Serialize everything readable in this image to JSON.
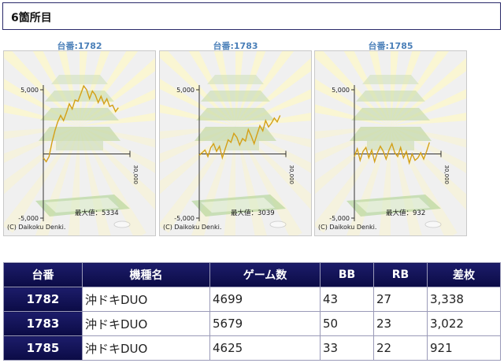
{
  "header": {
    "title": "6箇所目"
  },
  "graphs": [
    {
      "title": "台番:1782",
      "max_label": "最大値：5334",
      "copyright": "(C) Daikoku Denki.",
      "y_top_label": "5,000",
      "y_bottom_label": "-5,000",
      "x_end_label": "30,000",
      "chart_data": {
        "type": "line",
        "xlabel": "",
        "ylabel": "",
        "xlim": [
          0,
          30000
        ],
        "ylim": [
          -5000,
          5000
        ],
        "x": [
          0,
          1000,
          2000,
          3000,
          4000,
          5000,
          6000,
          7000,
          8000,
          9000,
          10000,
          11000,
          12000,
          13000,
          14000,
          15000,
          16000,
          17000,
          18000,
          19000,
          20000,
          21000,
          22000,
          23000,
          24000,
          25000,
          26000
        ],
        "y": [
          -300,
          -600,
          -200,
          900,
          1800,
          2500,
          3000,
          2600,
          3200,
          3900,
          3500,
          4200,
          4100,
          4700,
          5300,
          5000,
          4300,
          4900,
          4600,
          4000,
          4500,
          3900,
          4300,
          3700,
          3800,
          3300,
          3600
        ]
      }
    },
    {
      "title": "台番:1783",
      "max_label": "最大値：3039",
      "copyright": "(C) Daikoku Denki.",
      "y_top_label": "5,000",
      "y_bottom_label": "-5,000",
      "x_end_label": "30,000",
      "chart_data": {
        "type": "line",
        "xlabel": "",
        "ylabel": "",
        "xlim": [
          0,
          30000
        ],
        "ylim": [
          -5000,
          5000
        ],
        "x": [
          0,
          1000,
          2000,
          3000,
          4000,
          5000,
          6000,
          7000,
          8000,
          9000,
          10000,
          11000,
          12000,
          13000,
          14000,
          15000,
          16000,
          17000,
          18000,
          19000,
          20000,
          21000,
          22000,
          23000,
          24000,
          25000,
          26000,
          27000,
          28000
        ],
        "y": [
          -100,
          100,
          300,
          -200,
          500,
          800,
          200,
          600,
          -300,
          400,
          1100,
          900,
          1600,
          1300,
          700,
          1200,
          1000,
          1900,
          1400,
          800,
          1500,
          2200,
          1800,
          2600,
          2100,
          2400,
          2800,
          2500,
          3000
        ]
      }
    },
    {
      "title": "台番:1785",
      "max_label": "最大値：932",
      "copyright": "(C) Daikoku Denki.",
      "y_top_label": "5,000",
      "y_bottom_label": "-5,000",
      "x_end_label": "30,000",
      "chart_data": {
        "type": "line",
        "xlabel": "",
        "ylabel": "",
        "xlim": [
          0,
          30000
        ],
        "ylim": [
          -5000,
          5000
        ],
        "x": [
          0,
          1000,
          2000,
          3000,
          4000,
          5000,
          6000,
          7000,
          8000,
          9000,
          10000,
          11000,
          12000,
          13000,
          14000,
          15000,
          16000,
          17000,
          18000,
          19000,
          20000,
          21000,
          22000,
          23000,
          24000,
          25000,
          26000
        ],
        "y": [
          -200,
          400,
          -500,
          200,
          500,
          -300,
          300,
          -600,
          100,
          600,
          200,
          -400,
          300,
          800,
          100,
          -200,
          500,
          -300,
          200,
          -700,
          0,
          -500,
          -300,
          100,
          -400,
          200,
          900
        ]
      }
    }
  ],
  "table": {
    "headers": [
      "台番",
      "機種名",
      "ゲーム数",
      "BB",
      "RB",
      "差枚"
    ],
    "rows": [
      {
        "id": "1782",
        "model": "沖ドキDUO",
        "games": "4699",
        "bb": "43",
        "rb": "27",
        "diff": "3,338"
      },
      {
        "id": "1783",
        "model": "沖ドキDUO",
        "games": "5679",
        "bb": "50",
        "rb": "23",
        "diff": "3,022"
      },
      {
        "id": "1785",
        "model": "沖ドキDUO",
        "games": "4625",
        "bb": "33",
        "rb": "22",
        "diff": "921"
      }
    ]
  },
  "colors": {
    "line": "#d4a017",
    "header_bg": "#0e0e4e",
    "title_blue": "#4a7fb8",
    "border": "#2a2a6a"
  }
}
